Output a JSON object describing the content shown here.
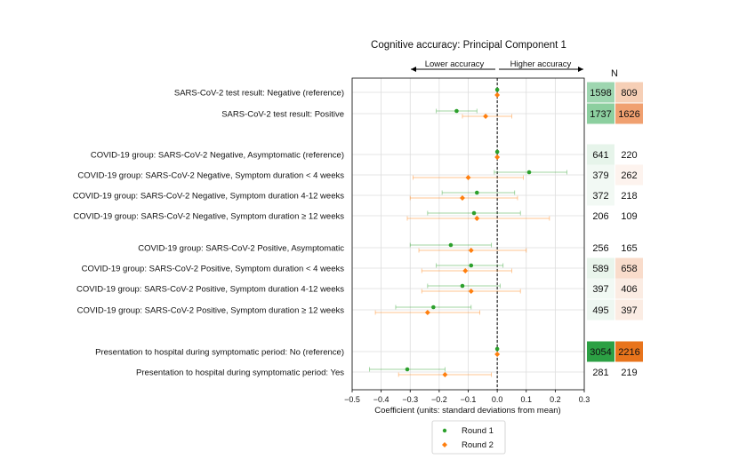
{
  "chart_data": {
    "type": "forest",
    "title": "Cognitive accuracy: Principal Component 1",
    "xlabel": "Coefficient (units: standard deviations from mean)",
    "xlim": [
      -0.5,
      0.3
    ],
    "xticks": [
      -0.5,
      -0.4,
      -0.3,
      -0.2,
      -0.1,
      0.0,
      0.1,
      0.2,
      0.3
    ],
    "xtick_labels": [
      "−0.5",
      "−0.4",
      "−0.3",
      "−0.2",
      "−0.1",
      "0.0",
      "0.1",
      "0.2",
      "0.3"
    ],
    "direction_left": "Lower accuracy",
    "direction_right": "Higher accuracy",
    "n_header": "N",
    "series": [
      {
        "name": "Round 1",
        "color": "#2ca02c"
      },
      {
        "name": "Round 2",
        "color": "#ff7f0e"
      }
    ],
    "rows": [
      {
        "label": "SARS-CoV-2 test result: Negative (reference)",
        "r1": {
          "est": 0.0,
          "lo": 0.0,
          "hi": 0.0
        },
        "r2": {
          "est": 0.0,
          "lo": 0.0,
          "hi": 0.0
        },
        "n1": "1598",
        "n2": "809",
        "n1_bg": "#9ed6b0",
        "n2_bg": "#f6cfb6"
      },
      {
        "label": "SARS-CoV-2 test result: Positive",
        "r1": {
          "est": -0.14,
          "lo": -0.21,
          "hi": -0.07
        },
        "r2": {
          "est": -0.04,
          "lo": -0.12,
          "hi": 0.05
        },
        "n1": "1737",
        "n2": "1626",
        "n1_bg": "#8ccf9f",
        "n2_bg": "#f0a070"
      },
      {
        "label": "COVID-19 group: SARS-CoV-2 Negative, Asymptomatic (reference)",
        "r1": {
          "est": 0.0,
          "lo": 0.0,
          "hi": 0.0
        },
        "r2": {
          "est": 0.0,
          "lo": 0.0,
          "hi": 0.0
        },
        "n1": "641",
        "n2": "220",
        "n1_bg": "#e6f4ea",
        "n2_bg": "#ffffff"
      },
      {
        "label": "COVID-19 group: SARS-CoV-2 Negative, Symptom duration < 4 weeks",
        "r1": {
          "est": 0.11,
          "lo": -0.01,
          "hi": 0.24
        },
        "r2": {
          "est": -0.1,
          "lo": -0.29,
          "hi": 0.09
        },
        "n1": "379",
        "n2": "262",
        "n1_bg": "#f2f9f4",
        "n2_bg": "#fdf3ee"
      },
      {
        "label": "COVID-19 group: SARS-CoV-2 Negative, Symptom duration 4-12 weeks",
        "r1": {
          "est": -0.07,
          "lo": -0.19,
          "hi": 0.06
        },
        "r2": {
          "est": -0.12,
          "lo": -0.3,
          "hi": 0.07
        },
        "n1": "372",
        "n2": "218",
        "n1_bg": "#f2f9f4",
        "n2_bg": "#ffffff"
      },
      {
        "label": "COVID-19 group: SARS-CoV-2 Negative, Symptom duration ≥ 12 weeks",
        "r1": {
          "est": -0.08,
          "lo": -0.24,
          "hi": 0.08
        },
        "r2": {
          "est": -0.07,
          "lo": -0.31,
          "hi": 0.18
        },
        "n1": "206",
        "n2": "109",
        "n1_bg": "#ffffff",
        "n2_bg": "#ffffff"
      },
      {
        "label": "COVID-19 group: SARS-CoV-2 Positive, Asymptomatic",
        "r1": {
          "est": -0.16,
          "lo": -0.3,
          "hi": -0.02
        },
        "r2": {
          "est": -0.09,
          "lo": -0.27,
          "hi": 0.1
        },
        "n1": "256",
        "n2": "165",
        "n1_bg": "#ffffff",
        "n2_bg": "#ffffff"
      },
      {
        "label": "COVID-19 group: SARS-CoV-2 Positive, Symptom duration < 4 weeks",
        "r1": {
          "est": -0.09,
          "lo": -0.21,
          "hi": 0.02
        },
        "r2": {
          "est": -0.11,
          "lo": -0.26,
          "hi": 0.05
        },
        "n1": "589",
        "n2": "658",
        "n1_bg": "#e9f5ec",
        "n2_bg": "#f9dccb"
      },
      {
        "label": "COVID-19 group: SARS-CoV-2 Positive, Symptom duration 4-12 weeks",
        "r1": {
          "est": -0.12,
          "lo": -0.24,
          "hi": 0.01
        },
        "r2": {
          "est": -0.09,
          "lo": -0.26,
          "hi": 0.08
        },
        "n1": "397",
        "n2": "406",
        "n1_bg": "#f2f9f4",
        "n2_bg": "#fbece3"
      },
      {
        "label": "COVID-19 group: SARS-CoV-2 Positive, Symptom duration ≥ 12 weeks",
        "r1": {
          "est": -0.22,
          "lo": -0.35,
          "hi": -0.09
        },
        "r2": {
          "est": -0.24,
          "lo": -0.42,
          "hi": -0.06
        },
        "n1": "495",
        "n2": "397",
        "n1_bg": "#eef7f1",
        "n2_bg": "#fbece3"
      },
      {
        "label": "Presentation to hospital during symptomatic period: No (reference)",
        "r1": {
          "est": 0.0,
          "lo": 0.0,
          "hi": 0.0
        },
        "r2": {
          "est": 0.0,
          "lo": 0.0,
          "hi": 0.0
        },
        "n1": "3054",
        "n2": "2216",
        "n1_bg": "#2ca044",
        "n2_bg": "#e8741c"
      },
      {
        "label": "Presentation to hospital during symptomatic period: Yes",
        "r1": {
          "est": -0.31,
          "lo": -0.44,
          "hi": -0.18
        },
        "r2": {
          "est": -0.18,
          "lo": -0.34,
          "hi": -0.02
        },
        "n1": "281",
        "n2": "219",
        "n1_bg": "#ffffff",
        "n2_bg": "#ffffff"
      }
    ]
  }
}
